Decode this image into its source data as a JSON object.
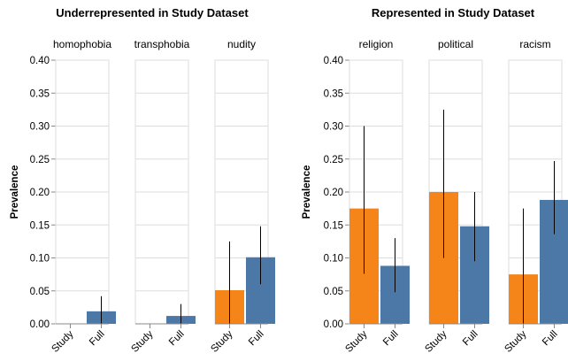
{
  "chart_data": [
    {
      "type": "bar",
      "title": "Underrepresented in Study Dataset",
      "ylabel": "Prevalence",
      "ylim": [
        0,
        0.4
      ],
      "yticks": [
        "0.00",
        "0.05",
        "0.10",
        "0.15",
        "0.20",
        "0.25",
        "0.30",
        "0.35",
        "0.40"
      ],
      "categories": [
        "Study",
        "Full"
      ],
      "colors": {
        "Study": "#f58518",
        "Full": "#4c78a8"
      },
      "grid": true,
      "facets": [
        {
          "name": "homophobia",
          "bars": [
            {
              "category": "Study",
              "value": 0.0,
              "ci": [
                0.0,
                0.0
              ]
            },
            {
              "category": "Full",
              "value": 0.019,
              "ci": [
                0.0,
                0.042
              ]
            }
          ]
        },
        {
          "name": "transphobia",
          "bars": [
            {
              "category": "Study",
              "value": 0.0,
              "ci": [
                0.0,
                0.0
              ]
            },
            {
              "category": "Full",
              "value": 0.012,
              "ci": [
                0.0,
                0.03
              ]
            }
          ]
        },
        {
          "name": "nudity",
          "bars": [
            {
              "category": "Study",
              "value": 0.051,
              "ci": [
                0.0,
                0.125
              ]
            },
            {
              "category": "Full",
              "value": 0.101,
              "ci": [
                0.06,
                0.148
              ]
            }
          ]
        }
      ]
    },
    {
      "type": "bar",
      "title": "Represented in Study Dataset",
      "ylabel": "Prevalence",
      "ylim": [
        0,
        0.4
      ],
      "yticks": [
        "0.00",
        "0.05",
        "0.10",
        "0.15",
        "0.20",
        "0.25",
        "0.30",
        "0.35",
        "0.40"
      ],
      "categories": [
        "Study",
        "Full"
      ],
      "colors": {
        "Study": "#f58518",
        "Full": "#4c78a8"
      },
      "grid": true,
      "facets": [
        {
          "name": "religion",
          "bars": [
            {
              "category": "Study",
              "value": 0.175,
              "ci": [
                0.076,
                0.3
              ]
            },
            {
              "category": "Full",
              "value": 0.088,
              "ci": [
                0.048,
                0.13
              ]
            }
          ]
        },
        {
          "name": "political",
          "bars": [
            {
              "category": "Study",
              "value": 0.2,
              "ci": [
                0.1,
                0.325
              ]
            },
            {
              "category": "Full",
              "value": 0.148,
              "ci": [
                0.095,
                0.2
              ]
            }
          ]
        },
        {
          "name": "racism",
          "bars": [
            {
              "category": "Study",
              "value": 0.075,
              "ci": [
                0.0,
                0.175
              ]
            },
            {
              "category": "Full",
              "value": 0.188,
              "ci": [
                0.136,
                0.247
              ]
            }
          ]
        }
      ]
    }
  ]
}
